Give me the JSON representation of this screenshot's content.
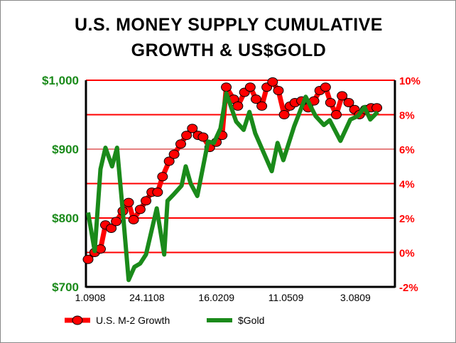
{
  "chart_data": {
    "type": "line",
    "title": [
      "U.S. MONEY SUPPLY CUMULATIVE",
      "GROWTH & US$GOLD"
    ],
    "x_unit": "days since 1.09.08",
    "xlim": [
      -3,
      370
    ],
    "x_ticks": [
      {
        "day": 0,
        "label": "1.0908"
      },
      {
        "day": 84,
        "label": "24.1108"
      },
      {
        "day": 168,
        "label": "16.0209"
      },
      {
        "day": 252,
        "label": "11.0509"
      },
      {
        "day": 336,
        "label": "3.0809"
      }
    ],
    "y_left": {
      "label": "",
      "range": [
        700,
        1000
      ],
      "ticks": [
        {
          "v": 1000,
          "label": "$1,000"
        },
        {
          "v": 900,
          "label": "$900"
        },
        {
          "v": 800,
          "label": "$800"
        },
        {
          "v": 700,
          "label": "$700"
        }
      ],
      "color": "#1a8a1a"
    },
    "y_right": {
      "label": "",
      "range": [
        -2,
        10
      ],
      "ticks": [
        {
          "v": 10,
          "label": "10%"
        },
        {
          "v": 8,
          "label": "8%"
        },
        {
          "v": 6,
          "label": "6%"
        },
        {
          "v": 4,
          "label": "4%"
        },
        {
          "v": 2,
          "label": "2%"
        },
        {
          "v": 0,
          "label": "0%"
        },
        {
          "v": -2,
          "label": "-2%"
        }
      ],
      "color": "#ff0000"
    },
    "grid": true,
    "legend_placement": "bottom",
    "series": [
      {
        "name": "U.S. M-2 Growth",
        "axis": "right",
        "color": "#ff0000",
        "marker": "circle",
        "x": [
          0,
          8,
          15,
          21,
          28,
          34,
          42,
          49,
          55,
          63,
          70,
          77,
          84,
          90,
          98,
          104,
          112,
          119,
          126,
          133,
          139,
          147,
          155,
          162,
          167,
          176,
          181,
          189,
          196,
          203,
          210,
          216,
          223,
          230,
          237,
          244,
          250,
          258,
          266,
          273,
          280,
          287,
          293,
          300,
          307,
          315,
          322,
          328,
          335,
          342,
          349
        ],
        "y": [
          -0.4,
          0,
          0.2,
          1.6,
          1.4,
          1.8,
          2.4,
          2.9,
          1.9,
          2.5,
          3.0,
          3.5,
          3.5,
          4.4,
          5.3,
          5.7,
          6.3,
          6.8,
          7.2,
          6.8,
          6.7,
          6.1,
          6.4,
          6.8,
          9.6,
          8.9,
          8.5,
          9.3,
          9.6,
          8.9,
          8.5,
          9.6,
          9.9,
          9.4,
          8.0,
          8.5,
          8.7,
          8.8,
          8.4,
          8.8,
          9.4,
          9.6,
          8.7,
          8.0,
          9.1,
          8.7,
          8.3,
          8.0,
          8.3,
          8.4,
          8.4
        ]
      },
      {
        "name": "$Gold",
        "axis": "left",
        "color": "#1a8a1a",
        "marker": "none",
        "x": [
          0,
          8,
          15,
          21,
          29,
          35,
          42,
          49,
          56,
          63,
          70,
          83,
          92,
          96,
          104,
          113,
          118,
          124,
          132,
          145,
          152,
          160,
          167,
          179,
          188,
          195,
          202,
          222,
          229,
          236,
          249,
          263,
          275,
          285,
          292,
          305,
          317,
          326,
          334,
          341,
          350
        ],
        "y": [
          808,
          752,
          871,
          902,
          875,
          902,
          809,
          710,
          729,
          734,
          747,
          814,
          747,
          825,
          835,
          847,
          875,
          850,
          832,
          911,
          909,
          930,
          981,
          940,
          928,
          954,
          923,
          868,
          909,
          884,
          933,
          976,
          948,
          935,
          942,
          912,
          943,
          948,
          961,
          943,
          954
        ]
      }
    ]
  }
}
